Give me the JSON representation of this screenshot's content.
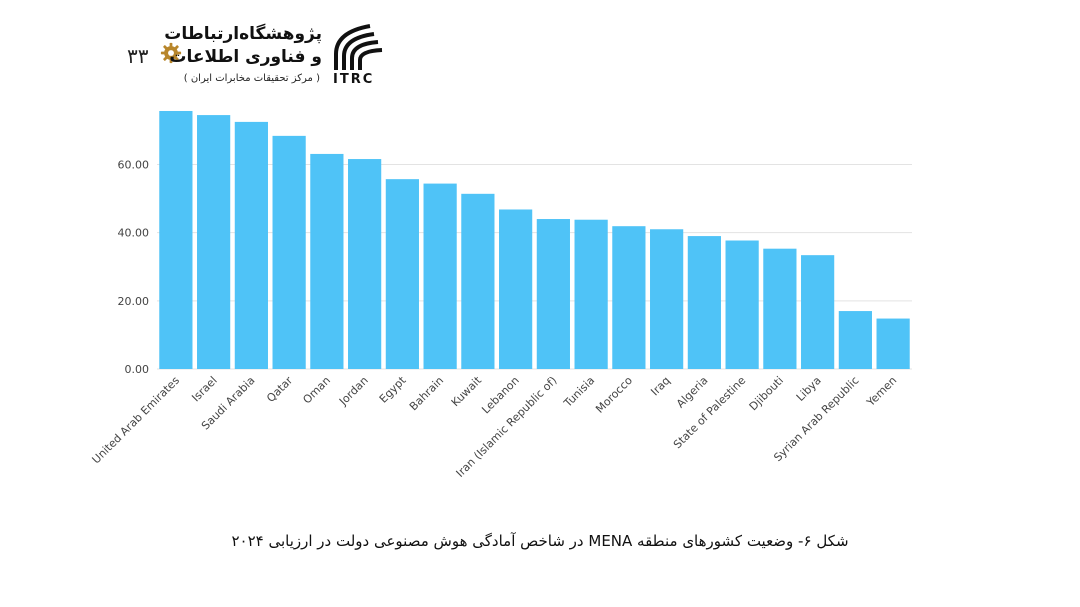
{
  "header": {
    "page_number": "۳۳",
    "org_name_line1": "پژوهشگاه‌ارتباطات",
    "org_name_line2": "و فناوری اطلاعات",
    "org_sub": "( مرکز تحقیقات مخابرات ایران )",
    "logo_text": "ITRC",
    "gear_icon": "gear-icon",
    "accent_color": "#b8862b"
  },
  "chart_data": {
    "type": "bar",
    "categories": [
      "United Arab Emirates",
      "Israel",
      "Saudi Arabia",
      "Qatar",
      "Oman",
      "Jordan",
      "Egypt",
      "Bahrain",
      "Kuwait",
      "Lebanon",
      "Iran (Islamic Republic of)",
      "Tunisia",
      "Morocco",
      "Iraq",
      "Algeria",
      "State of Palestine",
      "Djibouti",
      "Libya",
      "Syrian Arab Republic",
      "Yemen"
    ],
    "values": [
      75.7,
      74.5,
      72.5,
      68.4,
      63.1,
      61.6,
      55.7,
      54.4,
      51.4,
      46.8,
      44.0,
      43.8,
      41.9,
      41.0,
      39.0,
      37.7,
      35.3,
      33.4,
      17.0,
      14.8
    ],
    "yticks": [
      "0.00",
      "20.00",
      "40.00",
      "60.00"
    ],
    "ylim": [
      0,
      80
    ],
    "grid": true,
    "bar_color": "#4fc3f7",
    "title": "",
    "xlabel": "",
    "ylabel": ""
  },
  "caption": "شکل ۶- وضعیت کشورهای منطقه MENA در شاخص آمادگی هوش مصنوعی دولت در ارزیابی ۲۰۲۴"
}
